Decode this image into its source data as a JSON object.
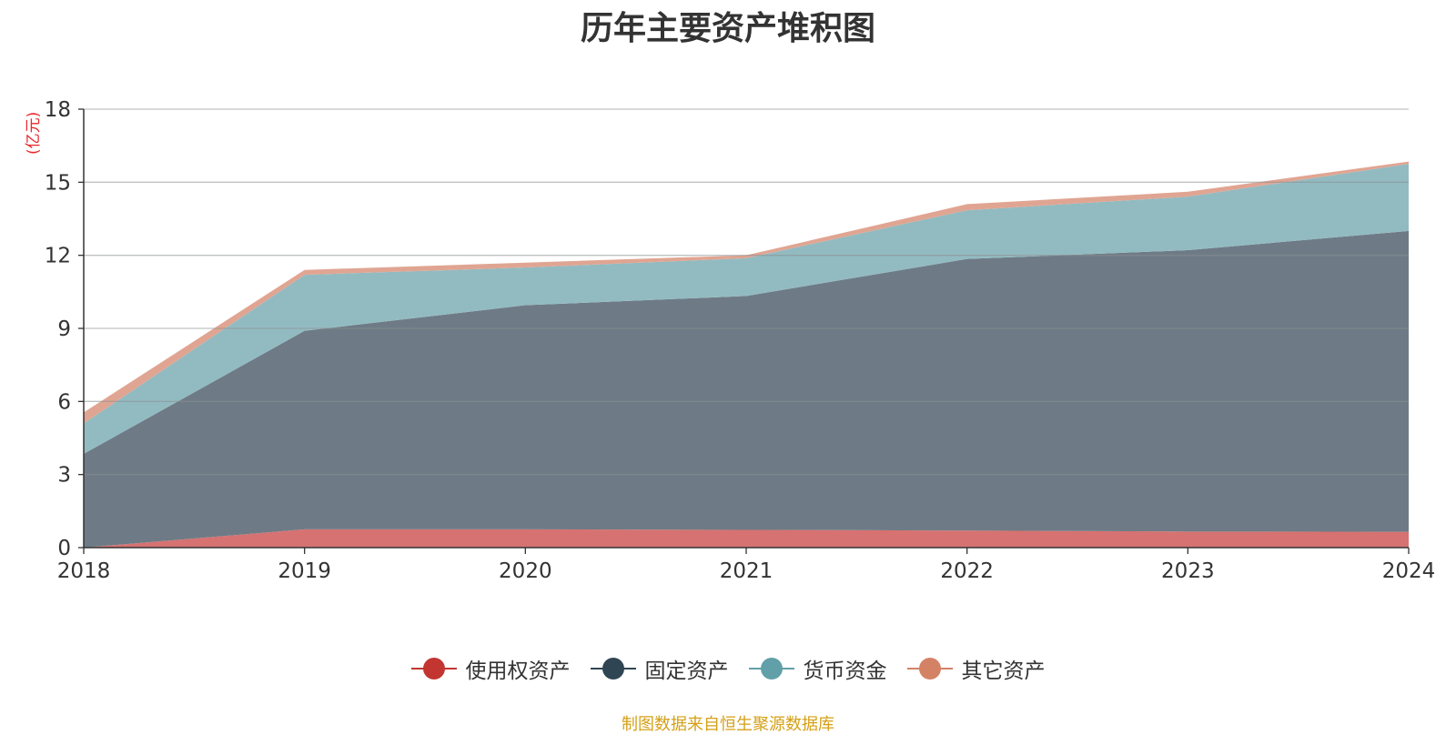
{
  "title": "历年主要资产堆积图",
  "source_note": "制图数据来自恒生聚源数据库",
  "chart_data": {
    "type": "area",
    "stacked": true,
    "title": "历年主要资产堆积图",
    "ylabel": "(亿元)",
    "xlabel": "",
    "x": [
      "2018",
      "2019",
      "2020",
      "2021",
      "2022",
      "2023",
      "2024"
    ],
    "ylim": [
      0,
      18
    ],
    "yticks": [
      0,
      3,
      6,
      9,
      12,
      15,
      18
    ],
    "grid": true,
    "legend_position": "bottom",
    "series": [
      {
        "name": "使用权资产",
        "color": "#d67271",
        "legend_color": "#c23531",
        "values": [
          0,
          0.75,
          0.75,
          0.73,
          0.7,
          0.66,
          0.65
        ]
      },
      {
        "name": "固定资产",
        "color": "#6e7b86",
        "legend_color": "#2f4554",
        "values": [
          3.85,
          8.15,
          9.2,
          9.6,
          11.15,
          11.55,
          12.35
        ]
      },
      {
        "name": "货币资金",
        "color": "#92bbc1",
        "legend_color": "#61a0a8",
        "values": [
          1.25,
          2.3,
          1.55,
          1.55,
          2.0,
          2.2,
          2.75
        ]
      },
      {
        "name": "其它资产",
        "color": "#e0a592",
        "legend_color": "#d48265",
        "values": [
          0.45,
          0.2,
          0.2,
          0.12,
          0.25,
          0.2,
          0.1
        ]
      }
    ]
  }
}
